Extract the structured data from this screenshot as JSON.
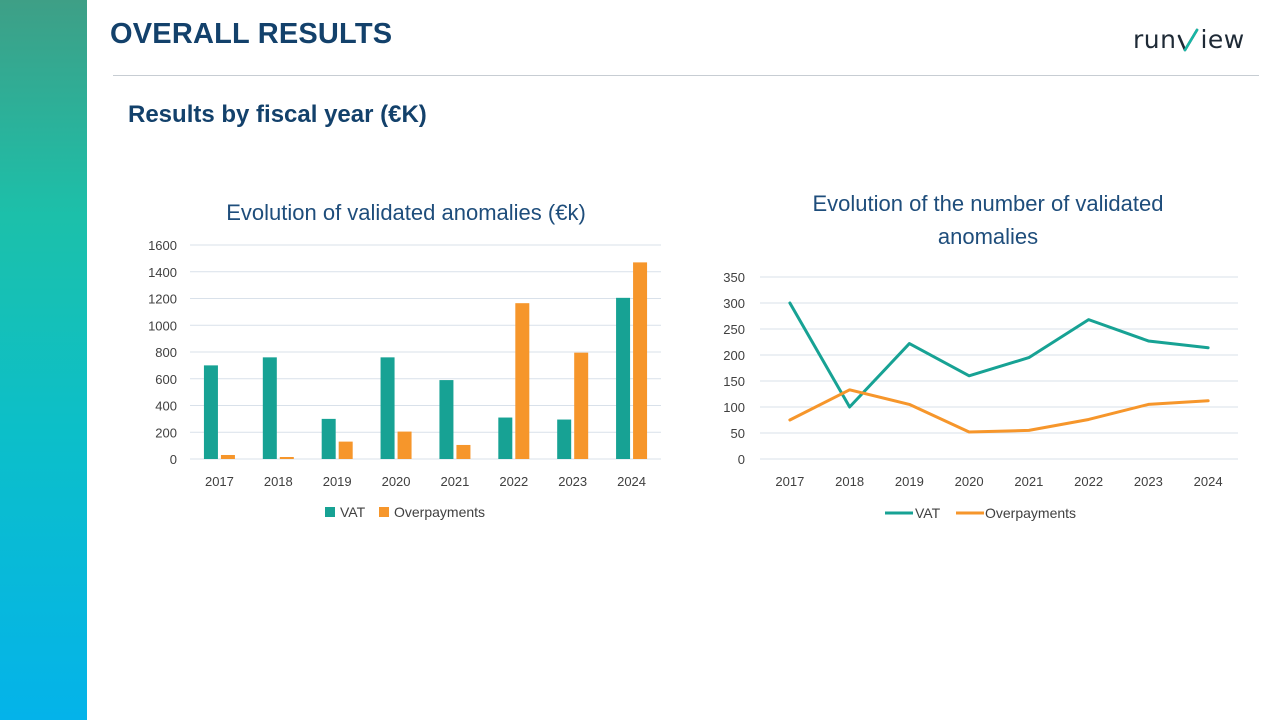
{
  "header": {
    "title": "OVERALL RESULTS",
    "logo_left": "run",
    "logo_right": "iew"
  },
  "section": {
    "title": "Results by fiscal year (€K)"
  },
  "colors": {
    "vat": "#17a294",
    "overpayments": "#f6962b",
    "grid": "#d9e1ea",
    "title": "#1e4d7b"
  },
  "chart_data": [
    {
      "type": "bar",
      "title": "Evolution of validated anomalies (€k)",
      "categories": [
        "2017",
        "2018",
        "2019",
        "2020",
        "2021",
        "2022",
        "2023",
        "2024"
      ],
      "series": [
        {
          "name": "VAT",
          "values": [
            700,
            760,
            300,
            760,
            590,
            310,
            295,
            1205
          ]
        },
        {
          "name": "Overpayments",
          "values": [
            30,
            15,
            130,
            205,
            105,
            1165,
            795,
            1470
          ]
        }
      ],
      "yticks": [
        "0",
        "200",
        "400",
        "600",
        "800",
        "1000",
        "1200",
        "1400",
        "1600"
      ],
      "ylim": [
        0,
        1600
      ],
      "grid": true,
      "legend": "bottom"
    },
    {
      "type": "line",
      "title": "Evolution of the number of validated anomalies",
      "title_lines": [
        "Evolution of the number of validated",
        "anomalies"
      ],
      "categories": [
        "2017",
        "2018",
        "2019",
        "2020",
        "2021",
        "2022",
        "2023",
        "2024"
      ],
      "series": [
        {
          "name": "VAT",
          "values": [
            300,
            100,
            222,
            160,
            195,
            268,
            227,
            214
          ]
        },
        {
          "name": "Overpayments",
          "values": [
            75,
            133,
            105,
            52,
            55,
            76,
            105,
            112
          ]
        }
      ],
      "yticks": [
        "0",
        "50",
        "100",
        "150",
        "200",
        "250",
        "300",
        "350"
      ],
      "ylim": [
        0,
        350
      ],
      "grid": true,
      "legend": "bottom"
    }
  ]
}
